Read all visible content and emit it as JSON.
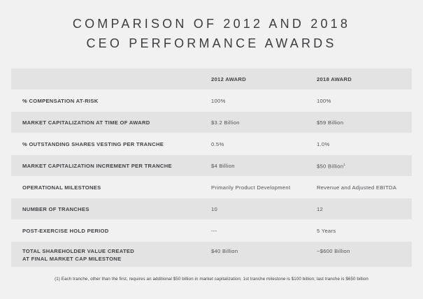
{
  "title": {
    "line1": "COMPARISON OF 2012 AND 2018",
    "line2": "CEO PERFORMANCE AWARDS"
  },
  "table": {
    "headers": {
      "label": "",
      "award_2012": "2012 AWARD",
      "award_2018": "2018 AWARD"
    },
    "rows": [
      {
        "label": "% COMPENSATION AT-RISK",
        "award_2012": "100%",
        "award_2018": "100%"
      },
      {
        "label": "MARKET CAPITALIZATION AT TIME OF AWARD",
        "award_2012": "$3.2 Billion",
        "award_2018": "$59 Billion"
      },
      {
        "label": "% OUTSTANDING SHARES VESTING PER TRANCHE",
        "award_2012": "0.5%",
        "award_2018": "1.0%"
      },
      {
        "label": "MARKET CAPITALIZATION INCREMENT PER TRANCHE",
        "award_2012": "$4 Billion",
        "award_2018": "$50 Billion",
        "award_2018_sup": "1"
      },
      {
        "label": "OPERATIONAL MILESTONES",
        "award_2012": "Primarily Product Development",
        "award_2018": "Revenue and Adjusted EBITDA"
      },
      {
        "label": "NUMBER OF TRANCHES",
        "award_2012": "10",
        "award_2018": "12"
      },
      {
        "label": "POST-EXERCISE HOLD PERIOD",
        "award_2012": "---",
        "award_2018": "5 Years"
      },
      {
        "label_line1": "TOTAL SHAREHOLDER VALUE CREATED",
        "label_line2": "AT FINAL MARKET CAP MILESTONE",
        "award_2012": "$40 Billion",
        "award_2018": "~$600 Billion"
      }
    ]
  },
  "footnote": "(1) Each tranche, other than the first, requires an additional $50 billion in market capitalization; 1st tranche milestone is $100 billion; last tranche is $650 billion"
}
